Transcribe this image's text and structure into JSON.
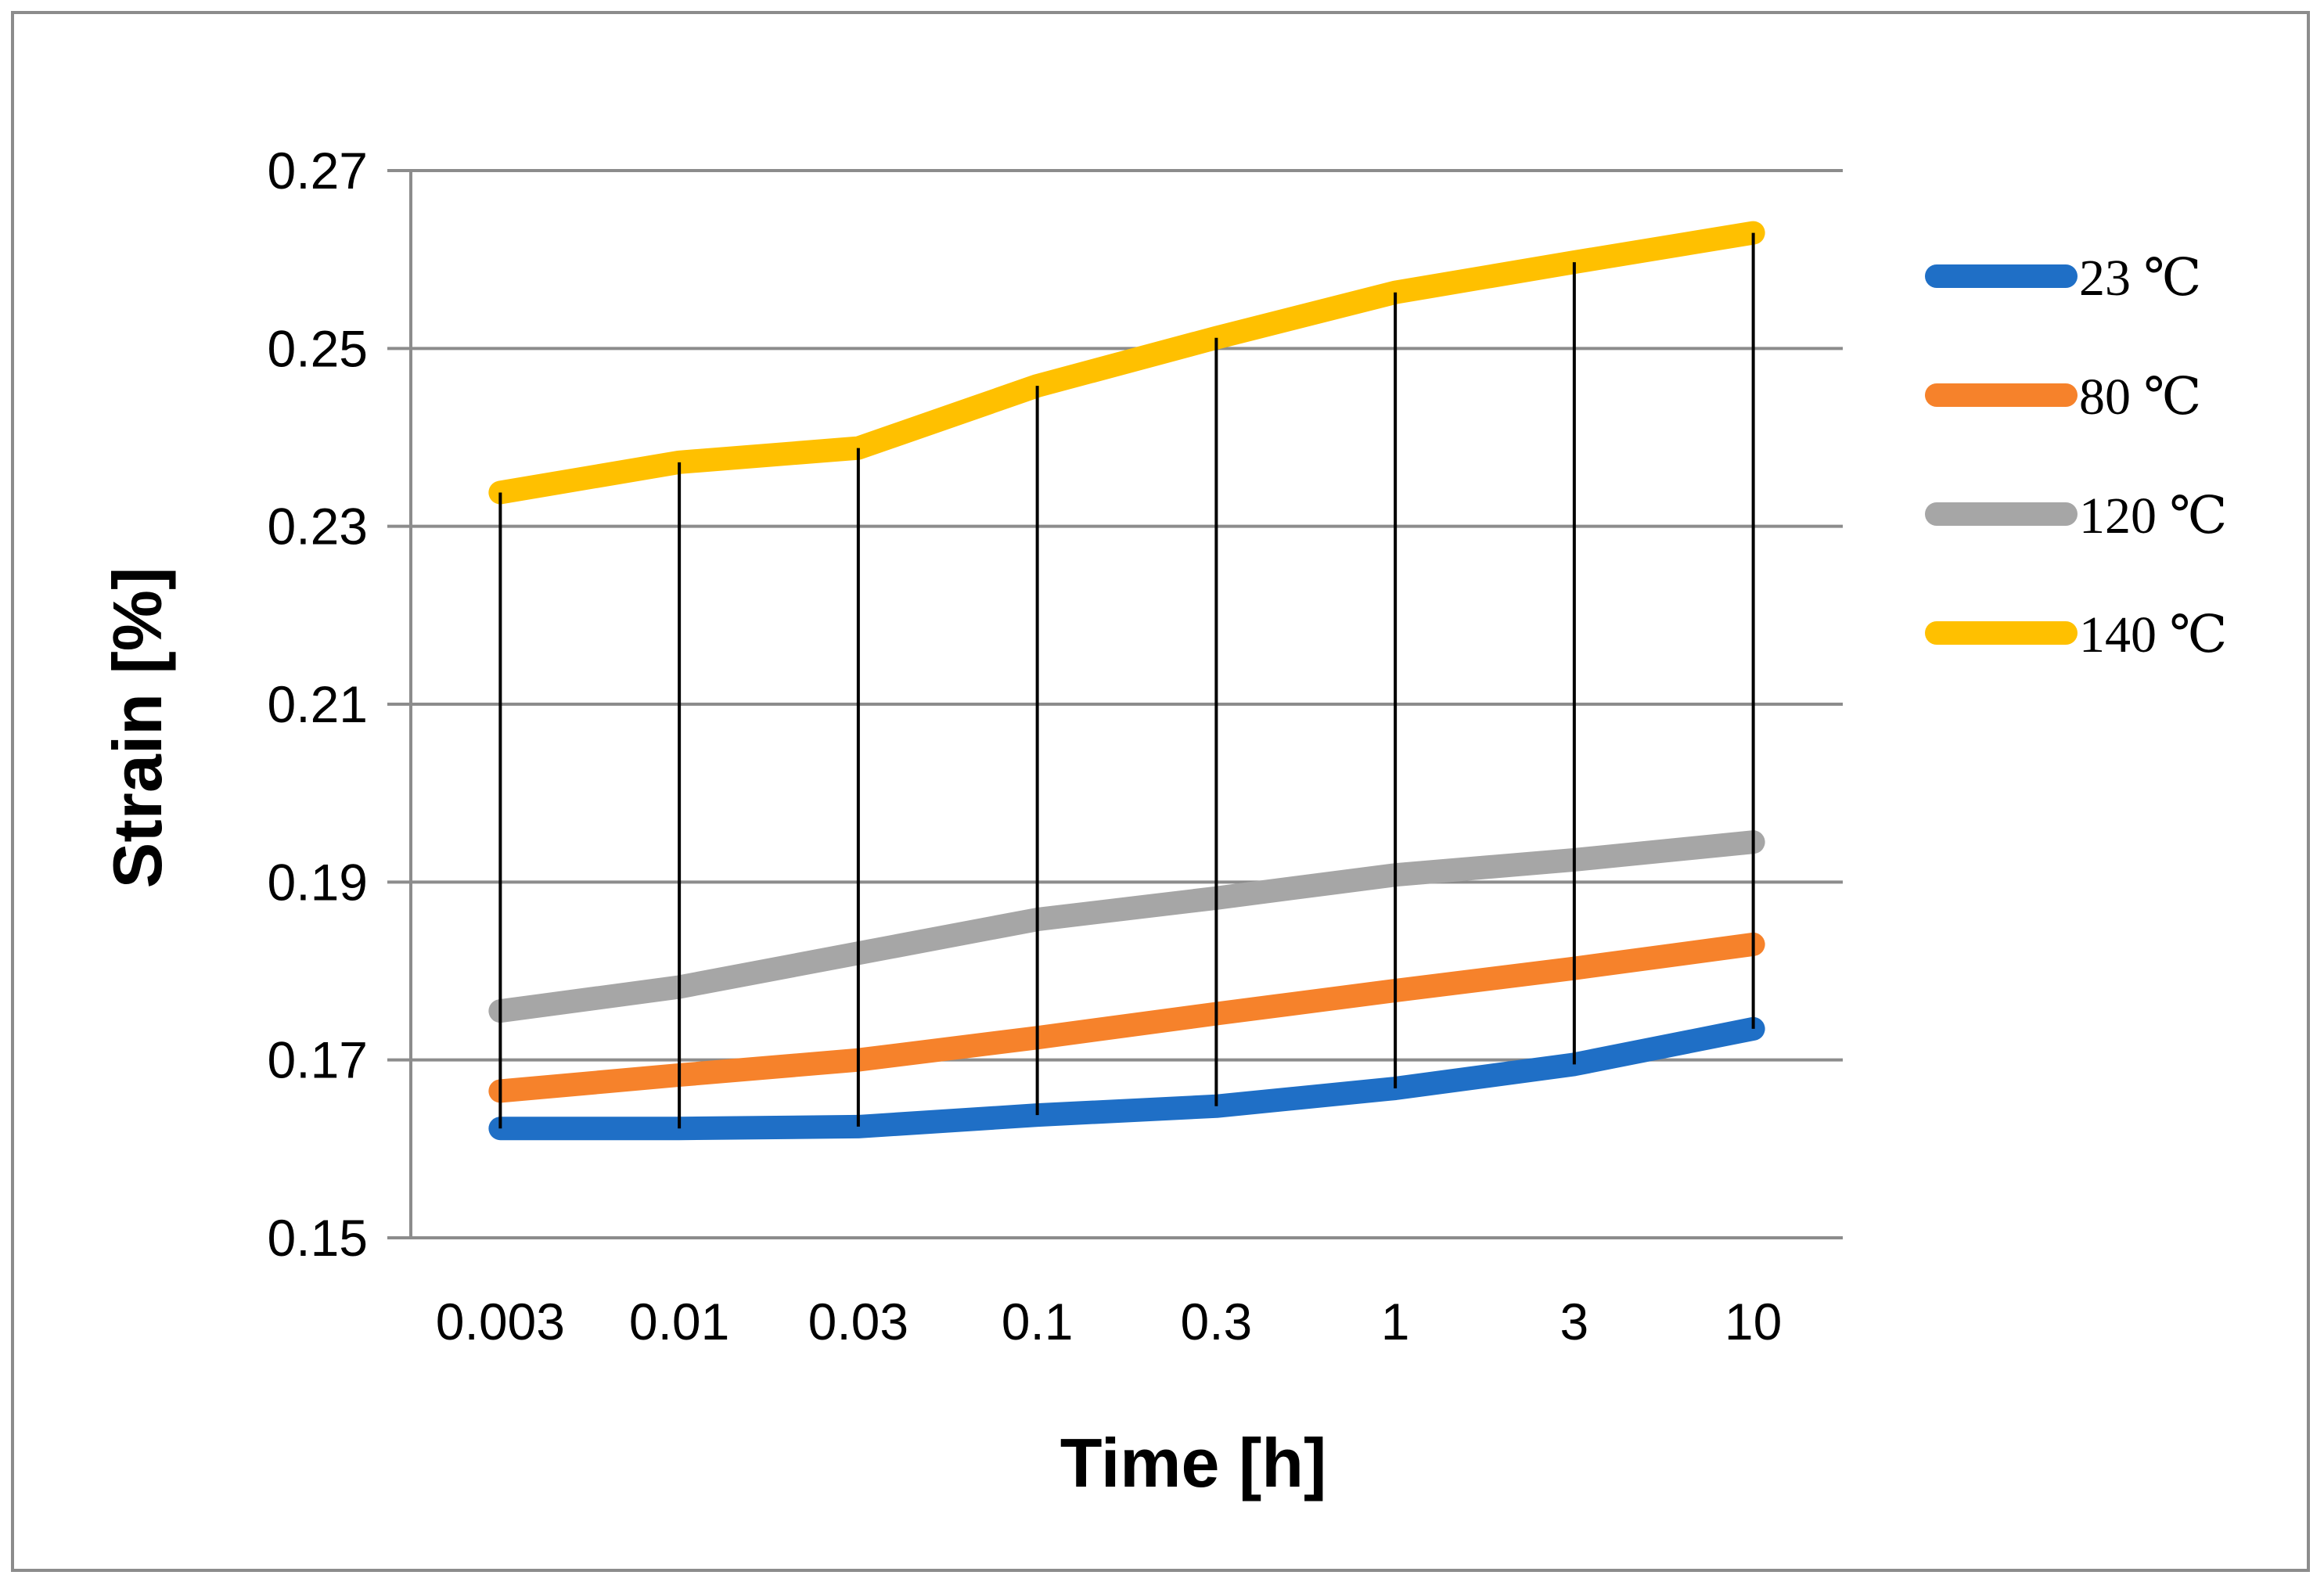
{
  "chart_data": {
    "type": "line",
    "title": "",
    "xlabel": "Time [h]",
    "ylabel": "Strain [%]",
    "categories": [
      "0.003",
      "0.01",
      "0.03",
      "0.1",
      "0.3",
      "1",
      "3",
      "10"
    ],
    "ylim": [
      0.15,
      0.27
    ],
    "yticks": [
      0.15,
      0.17,
      0.19,
      0.21,
      0.23,
      0.25,
      0.27
    ],
    "ytick_labels": [
      "0.15",
      "0.17",
      "0.19",
      "0.21",
      "0.23",
      "0.25",
      "0.27"
    ],
    "grid": true,
    "legend_position": "right",
    "drop_lines": true,
    "series": [
      {
        "name": "23 ℃",
        "color": "#1f6fc6",
        "values": [
          0.1623,
          0.1623,
          0.1625,
          0.1638,
          0.1648,
          0.1668,
          0.1695,
          0.1735
        ]
      },
      {
        "name": "80 ℃",
        "color": "#f6822b",
        "values": [
          0.1665,
          0.1683,
          0.17,
          0.1725,
          0.1752,
          0.1778,
          0.1803,
          0.183
        ]
      },
      {
        "name": "120 ℃",
        "color": "#a6a6a6",
        "values": [
          0.1755,
          0.1782,
          0.182,
          0.1858,
          0.1882,
          0.1908,
          0.1925,
          0.1945
        ]
      },
      {
        "name": "140 ℃",
        "color": "#ffc000",
        "values": [
          0.2338,
          0.2372,
          0.2388,
          0.2458,
          0.2512,
          0.2563,
          0.2597,
          0.263
        ]
      }
    ]
  }
}
